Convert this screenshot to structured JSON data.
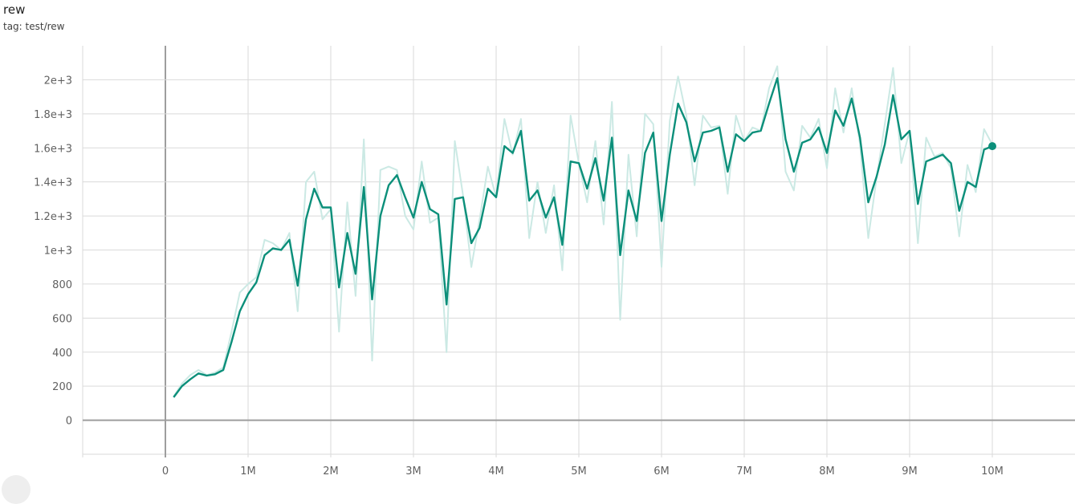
{
  "card": {
    "title": "rew",
    "tag": "tag: test/rew"
  },
  "colors": {
    "smoothed": "#0b8f7a",
    "raw": "#cbe9e4",
    "grid": "#dadada",
    "zero_axis": "#9e9e9e"
  },
  "chart_data": {
    "type": "line",
    "title": "rew",
    "xlabel": "",
    "ylabel": "",
    "xlim": [
      -1000000,
      11000000
    ],
    "ylim": [
      -200,
      2200
    ],
    "grid": true,
    "x_ticks": [
      0,
      1000000,
      2000000,
      3000000,
      4000000,
      5000000,
      6000000,
      7000000,
      8000000,
      9000000,
      10000000
    ],
    "x_tick_labels": [
      "0",
      "1M",
      "2M",
      "3M",
      "4M",
      "5M",
      "6M",
      "7M",
      "8M",
      "9M",
      "10M"
    ],
    "y_ticks": [
      0,
      200,
      400,
      600,
      800,
      1000,
      1200,
      1400,
      1600,
      1800,
      2000
    ],
    "y_tick_labels": [
      "0",
      "200",
      "400",
      "600",
      "800",
      "1e+3",
      "1.2e+3",
      "1.4e+3",
      "1.6e+3",
      "1.8e+3",
      "2e+3"
    ],
    "series": [
      {
        "role": "raw",
        "x": [
          100000,
          200000,
          300000,
          400000,
          500000,
          600000,
          700000,
          800000,
          900000,
          1000000,
          1100000,
          1200000,
          1300000,
          1400000,
          1500000,
          1600000,
          1700000,
          1800000,
          1900000,
          2000000,
          2100000,
          2200000,
          2300000,
          2400000,
          2500000,
          2600000,
          2700000,
          2800000,
          2900000,
          3000000,
          3100000,
          3200000,
          3300000,
          3400000,
          3500000,
          3600000,
          3700000,
          3800000,
          3900000,
          4000000,
          4100000,
          4200000,
          4300000,
          4400000,
          4500000,
          4600000,
          4700000,
          4800000,
          4900000,
          5000000,
          5100000,
          5200000,
          5300000,
          5400000,
          5500000,
          5600000,
          5700000,
          5800000,
          5900000,
          6000000,
          6100000,
          6200000,
          6300000,
          6400000,
          6500000,
          6600000,
          6700000,
          6800000,
          6900000,
          7000000,
          7100000,
          7200000,
          7300000,
          7400000,
          7500000,
          7600000,
          7700000,
          7800000,
          7900000,
          8000000,
          8100000,
          8200000,
          8300000,
          8400000,
          8500000,
          8600000,
          8700000,
          8800000,
          8900000,
          9000000,
          9100000,
          9200000,
          9300000,
          9400000,
          9500000,
          9600000,
          9700000,
          9800000,
          9900000,
          10000000
        ],
        "y": [
          140,
          215,
          265,
          295,
          265,
          280,
          310,
          520,
          750,
          800,
          840,
          1060,
          1040,
          1000,
          1100,
          640,
          1400,
          1460,
          1180,
          1240,
          520,
          1280,
          730,
          1650,
          350,
          1470,
          1490,
          1470,
          1200,
          1120,
          1520,
          1160,
          1190,
          400,
          1640,
          1320,
          900,
          1180,
          1490,
          1310,
          1770,
          1560,
          1770,
          1070,
          1400,
          1100,
          1380,
          880,
          1790,
          1510,
          1280,
          1640,
          1150,
          1870,
          590,
          1560,
          1080,
          1800,
          1740,
          900,
          1760,
          2020,
          1790,
          1380,
          1790,
          1720,
          1730,
          1330,
          1790,
          1640,
          1720,
          1700,
          1950,
          2080,
          1460,
          1350,
          1730,
          1660,
          1770,
          1480,
          1950,
          1690,
          1950,
          1620,
          1070,
          1420,
          1740,
          2070,
          1510,
          1700,
          1040,
          1660,
          1550,
          1570,
          1480,
          1080,
          1500,
          1340,
          1710,
          1620
        ]
      },
      {
        "role": "smoothed",
        "x": [
          100000,
          200000,
          300000,
          400000,
          500000,
          600000,
          700000,
          800000,
          900000,
          1000000,
          1100000,
          1200000,
          1300000,
          1400000,
          1500000,
          1600000,
          1700000,
          1800000,
          1900000,
          2000000,
          2100000,
          2200000,
          2300000,
          2400000,
          2500000,
          2600000,
          2700000,
          2800000,
          2900000,
          3000000,
          3100000,
          3200000,
          3300000,
          3400000,
          3500000,
          3600000,
          3700000,
          3800000,
          3900000,
          4000000,
          4100000,
          4200000,
          4300000,
          4400000,
          4500000,
          4600000,
          4700000,
          4800000,
          4900000,
          5000000,
          5100000,
          5200000,
          5300000,
          5400000,
          5500000,
          5600000,
          5700000,
          5800000,
          5900000,
          6000000,
          6100000,
          6200000,
          6300000,
          6400000,
          6500000,
          6600000,
          6700000,
          6800000,
          6900000,
          7000000,
          7100000,
          7200000,
          7300000,
          7400000,
          7500000,
          7600000,
          7700000,
          7800000,
          7900000,
          8000000,
          8100000,
          8200000,
          8300000,
          8400000,
          8500000,
          8600000,
          8700000,
          8800000,
          8900000,
          9000000,
          9100000,
          9200000,
          9300000,
          9400000,
          9500000,
          9600000,
          9700000,
          9800000,
          9900000,
          10000000
        ],
        "y": [
          135,
          200,
          240,
          275,
          262,
          270,
          295,
          460,
          640,
          740,
          810,
          970,
          1010,
          1000,
          1060,
          790,
          1180,
          1360,
          1250,
          1250,
          780,
          1100,
          860,
          1370,
          710,
          1200,
          1380,
          1440,
          1310,
          1190,
          1400,
          1240,
          1210,
          680,
          1300,
          1310,
          1040,
          1130,
          1360,
          1310,
          1610,
          1570,
          1700,
          1290,
          1350,
          1190,
          1310,
          1030,
          1520,
          1510,
          1360,
          1540,
          1290,
          1660,
          970,
          1350,
          1170,
          1570,
          1690,
          1170,
          1560,
          1860,
          1750,
          1520,
          1690,
          1700,
          1720,
          1460,
          1680,
          1640,
          1690,
          1700,
          1860,
          2010,
          1650,
          1460,
          1630,
          1650,
          1720,
          1570,
          1820,
          1730,
          1890,
          1660,
          1280,
          1430,
          1620,
          1910,
          1650,
          1700,
          1270,
          1520,
          1540,
          1560,
          1510,
          1230,
          1400,
          1370,
          1590,
          1610
        ]
      }
    ]
  }
}
